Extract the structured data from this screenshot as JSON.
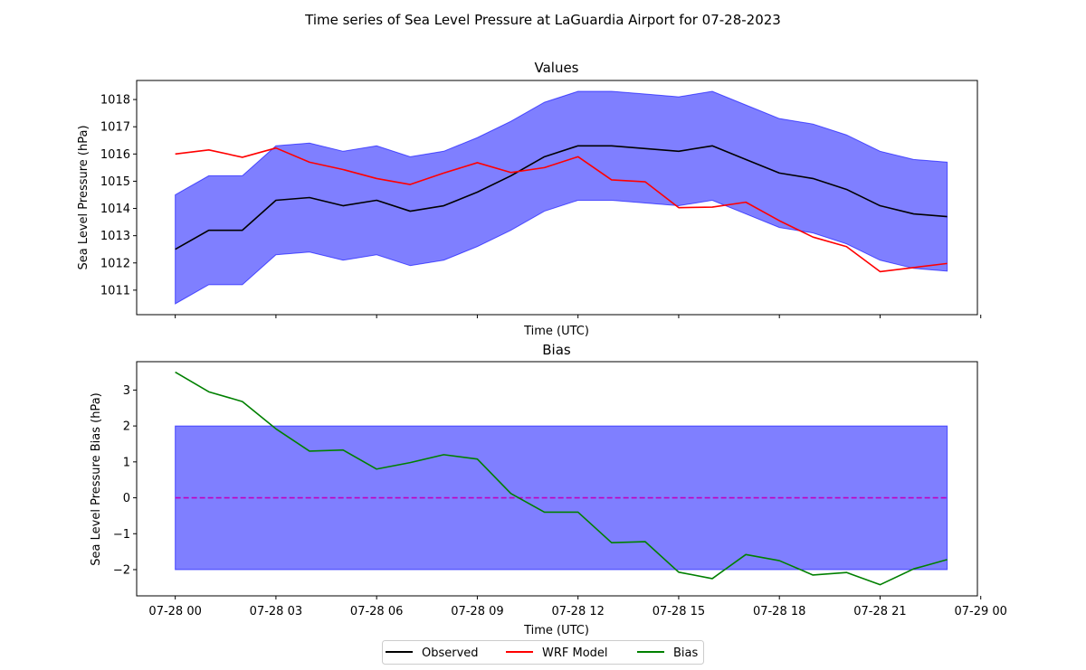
{
  "figure": {
    "suptitle": "Time series of Sea Level Pressure at LaGuardia Airport for 07-28-2023"
  },
  "legend": {
    "placement": "bottom-center",
    "entries": [
      {
        "label": "Observed",
        "color": "#000000"
      },
      {
        "label": "WRF Model",
        "color": "#ff0000"
      },
      {
        "label": "Bias",
        "color": "#008000"
      }
    ]
  },
  "chart_data": [
    {
      "type": "line",
      "title": "Values",
      "xlabel": "Time (UTC)",
      "ylabel": "Sea Level Pressure (hPa)",
      "x_hours": [
        0,
        1,
        2,
        3,
        4,
        5,
        6,
        7,
        8,
        9,
        10,
        11,
        12,
        13,
        14,
        15,
        16,
        17,
        18,
        19,
        20,
        21,
        22,
        23
      ],
      "xlim_hours": [
        -1.15,
        23.9
      ],
      "ylim": [
        1010.1,
        1018.7
      ],
      "xtick_labels": [],
      "ytick_labels": [
        "1011",
        "1012",
        "1013",
        "1014",
        "1015",
        "1016",
        "1017",
        "1018"
      ],
      "ytick_values": [
        1011,
        1012,
        1013,
        1014,
        1015,
        1016,
        1017,
        1018
      ],
      "grid": false,
      "series": [
        {
          "name": "Observed",
          "color": "#000000",
          "values": [
            1012.5,
            1013.2,
            1013.2,
            1014.3,
            1014.4,
            1014.1,
            1014.3,
            1013.9,
            1014.1,
            1014.6,
            1015.2,
            1015.9,
            1016.3,
            1016.3,
            1016.2,
            1016.1,
            1016.3,
            1015.8,
            1015.3,
            1015.1,
            1014.7,
            1014.1,
            1013.8,
            1013.7
          ]
        },
        {
          "name": "WRF Model",
          "color": "#ff0000",
          "values": [
            1016.0,
            1016.15,
            1015.88,
            1016.22,
            1015.7,
            1015.43,
            1015.1,
            1014.88,
            1015.3,
            1015.68,
            1015.32,
            1015.5,
            1015.9,
            1015.05,
            1014.98,
            1014.03,
            1014.05,
            1014.23,
            1013.55,
            1012.95,
            1012.6,
            1011.68,
            1011.83,
            1011.98
          ]
        }
      ],
      "band": {
        "color": "#0000ff",
        "opacity": 0.5,
        "lower": [
          1010.5,
          1011.2,
          1011.2,
          1012.3,
          1012.4,
          1012.1,
          1012.3,
          1011.9,
          1012.1,
          1012.6,
          1013.2,
          1013.9,
          1014.3,
          1014.3,
          1014.2,
          1014.1,
          1014.3,
          1013.8,
          1013.3,
          1013.1,
          1012.7,
          1012.1,
          1011.8,
          1011.7
        ],
        "upper": [
          1014.5,
          1015.2,
          1015.2,
          1016.3,
          1016.4,
          1016.1,
          1016.3,
          1015.9,
          1016.1,
          1016.6,
          1017.2,
          1017.9,
          1018.3,
          1018.3,
          1018.2,
          1018.1,
          1018.3,
          1017.8,
          1017.3,
          1017.1,
          1016.7,
          1016.1,
          1015.8,
          1015.7
        ]
      }
    },
    {
      "type": "line",
      "title": "Bias",
      "xlabel": "Time (UTC)",
      "ylabel": "Sea Level Pressure Bias (hPa)",
      "x_hours": [
        0,
        1,
        2,
        3,
        4,
        5,
        6,
        7,
        8,
        9,
        10,
        11,
        12,
        13,
        14,
        15,
        16,
        17,
        18,
        19,
        20,
        21,
        22,
        23
      ],
      "xlim_hours": [
        -1.15,
        23.9
      ],
      "ylim": [
        -2.73,
        3.79
      ],
      "xtick_labels": [
        "07-28 00",
        "07-28 03",
        "07-28 06",
        "07-28 09",
        "07-28 12",
        "07-28 15",
        "07-28 18",
        "07-28 21",
        "07-29 00"
      ],
      "xtick_hours": [
        0,
        3,
        6,
        9,
        12,
        15,
        18,
        21,
        24
      ],
      "ytick_labels": [
        "−2",
        "−1",
        "0",
        "1",
        "2",
        "3"
      ],
      "ytick_values": [
        -2,
        -1,
        0,
        1,
        2,
        3
      ],
      "grid": false,
      "series": [
        {
          "name": "Bias",
          "color": "#008000",
          "values": [
            3.5,
            2.95,
            2.68,
            1.92,
            1.3,
            1.33,
            0.8,
            0.98,
            1.2,
            1.08,
            0.12,
            -0.4,
            -0.4,
            -1.25,
            -1.22,
            -2.07,
            -2.25,
            -1.58,
            -1.75,
            -2.15,
            -2.08,
            -2.42,
            -1.98,
            -1.72
          ]
        }
      ],
      "band": {
        "color": "#0000ff",
        "opacity": 0.5,
        "lower": -2,
        "upper": 2
      },
      "reference_line": {
        "value": 0,
        "color": "#c000c0",
        "style": "dashed"
      }
    }
  ]
}
